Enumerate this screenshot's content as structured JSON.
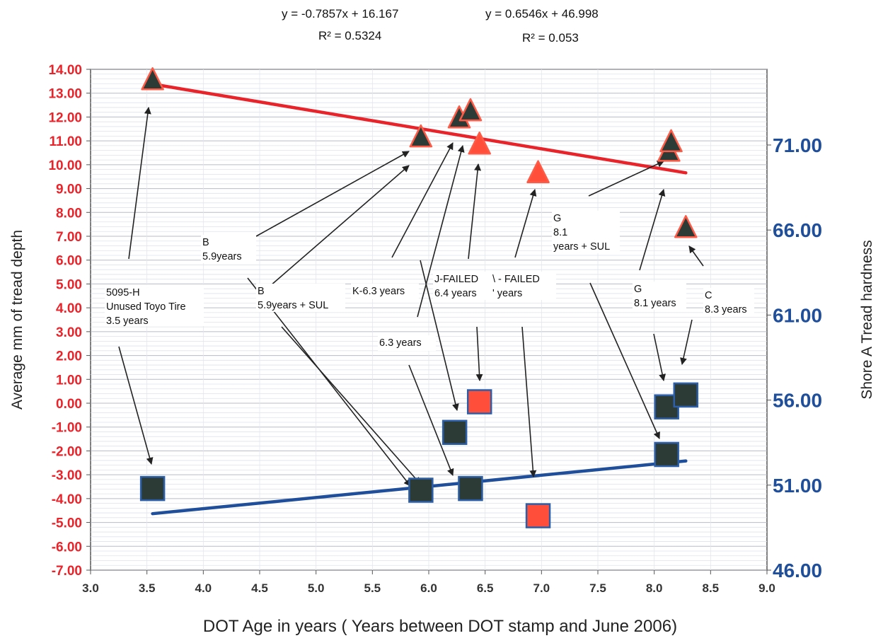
{
  "chart_data": {
    "type": "scatter",
    "equations": [
      {
        "line1": "y = -0.7857x + 16.167",
        "line2": "R² = 0.5324"
      },
      {
        "line1": "y = 0.6546x + 46.998",
        "line2": "R² = 0.053"
      }
    ],
    "xlabel": "DOT Age in years ( Years between DOT stamp and June 2006)",
    "ylabel_left": "Average mm of tread depth",
    "ylabel_right": "Shore A Tread hardness",
    "xlim": [
      3.0,
      9.0
    ],
    "ylim_left": [
      -7.0,
      14.0
    ],
    "ylim_right": [
      46.0,
      75.45
    ],
    "x_ticks": [
      "3.0",
      "3.5",
      "4.0",
      "4.5",
      "5.0",
      "5.5",
      "6.0",
      "6.5",
      "7.0",
      "7.5",
      "8.0",
      "8.5",
      "9.0"
    ],
    "y_left_ticks": [
      "14.00",
      "13.00",
      "12.00",
      "11.00",
      "10.00",
      "9.00",
      "8.00",
      "7.00",
      "6.00",
      "5.00",
      "4.00",
      "3.00",
      "2.00",
      "1.00",
      "0.00",
      "-1.00",
      "-2.00",
      "-3.00",
      "-4.00",
      "-5.00",
      "-6.00",
      "-7.00"
    ],
    "y_right_ticks": [
      "46.00",
      "51.00",
      "56.00",
      "61.00",
      "66.00",
      "71.00"
    ],
    "grid": true,
    "series": [
      {
        "marker": "triangle",
        "axis": "left",
        "points": [
          {
            "x": 3.55,
            "y": 13.5,
            "color": "#2c3b35"
          },
          {
            "x": 5.93,
            "y": 11.1,
            "color": "#2c3b35"
          },
          {
            "x": 6.27,
            "y": 11.9,
            "color": "#2c3b35"
          },
          {
            "x": 6.37,
            "y": 12.2,
            "color": "#2c3b35"
          },
          {
            "x": 6.45,
            "y": 10.8,
            "color": "#ff4f3a"
          },
          {
            "x": 6.97,
            "y": 9.6,
            "color": "#ff4f3a"
          },
          {
            "x": 8.13,
            "y": 10.5,
            "color": "#2c3b35"
          },
          {
            "x": 8.15,
            "y": 10.9,
            "color": "#2c3b35"
          },
          {
            "x": 8.28,
            "y": 7.3,
            "color": "#2c3b35"
          }
        ]
      },
      {
        "marker": "square",
        "axis": "right",
        "points": [
          {
            "x": 3.55,
            "y": 50.8,
            "color": "#2c3b35"
          },
          {
            "x": 5.93,
            "y": 50.7,
            "color": "#2c3b35"
          },
          {
            "x": 6.23,
            "y": 54.1,
            "color": "#2c3b35"
          },
          {
            "x": 6.37,
            "y": 50.8,
            "color": "#2c3b35"
          },
          {
            "x": 6.45,
            "y": 55.9,
            "color": "#ff4f3a"
          },
          {
            "x": 6.97,
            "y": 49.2,
            "color": "#ff4f3a"
          },
          {
            "x": 8.11,
            "y": 52.8,
            "color": "#2c3b35"
          },
          {
            "x": 8.11,
            "y": 55.6,
            "color": "#2c3b35"
          },
          {
            "x": 8.28,
            "y": 56.3,
            "color": "#2c3b35"
          }
        ]
      }
    ],
    "trendlines": [
      {
        "axis": "left",
        "color": "#e8232a",
        "x": [
          3.55,
          8.28
        ],
        "y": [
          13.38,
          9.66
        ]
      },
      {
        "axis": "right",
        "color": "#1f4e9a",
        "x": [
          3.55,
          8.28
        ],
        "y": [
          49.32,
          52.42
        ]
      }
    ],
    "annotations": [
      {
        "lines": [
          "5095-H",
          "Unused Toyo Tire",
          "3.5 years"
        ]
      },
      {
        "lines": [
          "B",
          "5.9years"
        ]
      },
      {
        "lines": [
          "B",
          "5.9years + SUL"
        ]
      },
      {
        "lines": [
          "K-6.3 years"
        ]
      },
      {
        "lines": [
          "6.3 years"
        ]
      },
      {
        "lines": [
          "J-FAILED",
          "6.4 years"
        ]
      },
      {
        "lines": [
          "\\ - FAILED",
          "' years"
        ]
      },
      {
        "lines": [
          "G",
          "8.1",
          "years + SUL"
        ]
      },
      {
        "lines": [
          "G",
          "8.1 years"
        ]
      },
      {
        "lines": [
          "C",
          "8.3 years"
        ]
      }
    ],
    "colors": {
      "left_axis": "#e8232a",
      "right_axis": "#1f4e9a",
      "dark_marker": "#2c3b35",
      "red_marker": "#ff4f3a"
    }
  }
}
